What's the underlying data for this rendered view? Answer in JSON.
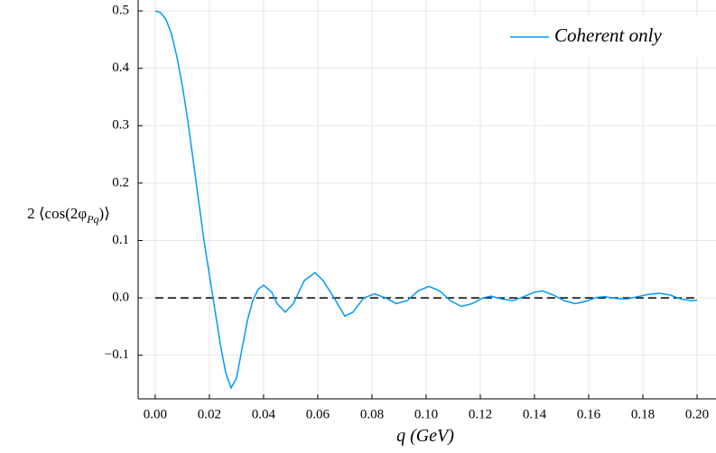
{
  "chart_data": {
    "type": "line",
    "xlabel": {
      "main": "q",
      "unit": "(GeV)"
    },
    "ylabel": {
      "main": "2 ⟨cos(2φ",
      "sub": "Pq",
      "end": ")⟩"
    },
    "xlim": [
      -0.0063,
      0.207
    ],
    "ylim": [
      -0.176,
      0.519
    ],
    "xticks": [
      {
        "value": 0,
        "label": "0.00"
      },
      {
        "value": 0.02,
        "label": "0.02"
      },
      {
        "value": 0.04,
        "label": "0.04"
      },
      {
        "value": 0.06,
        "label": "0.06"
      },
      {
        "value": 0.08,
        "label": "0.08"
      },
      {
        "value": 0.1,
        "label": "0.10"
      },
      {
        "value": 0.12,
        "label": "0.12"
      },
      {
        "value": 0.14,
        "label": "0.14"
      },
      {
        "value": 0.16,
        "label": "0.16"
      },
      {
        "value": 0.18,
        "label": "0.18"
      },
      {
        "value": 0.2,
        "label": "0.20"
      }
    ],
    "yticks": [
      {
        "value": -0.1,
        "label": "−0.1"
      },
      {
        "value": 0,
        "label": "0.0"
      },
      {
        "value": 0.1,
        "label": "0.1"
      },
      {
        "value": 0.2,
        "label": "0.2"
      },
      {
        "value": 0.3,
        "label": "0.3"
      },
      {
        "value": 0.4,
        "label": "0.4"
      },
      {
        "value": 0.5,
        "label": "0.5"
      }
    ],
    "grid": true,
    "legend": "top-right",
    "hline": 0,
    "x": [
      0,
      0.002,
      0.004,
      0.006,
      0.008,
      0.01,
      0.012,
      0.014,
      0.016,
      0.018,
      0.02,
      0.022,
      0.024,
      0.026,
      0.028,
      0.03,
      0.032,
      0.034,
      0.036,
      0.038,
      0.04,
      0.043,
      0.045,
      0.048,
      0.051,
      0.055,
      0.059,
      0.062,
      0.066,
      0.07,
      0.073,
      0.077,
      0.081,
      0.085,
      0.089,
      0.093,
      0.097,
      0.101,
      0.105,
      0.109,
      0.113,
      0.117,
      0.121,
      0.124,
      0.128,
      0.132,
      0.136,
      0.14,
      0.143,
      0.147,
      0.151,
      0.155,
      0.159,
      0.163,
      0.166,
      0.17,
      0.174,
      0.178,
      0.182,
      0.186,
      0.19,
      0.194,
      0.198,
      0.2
    ],
    "series": [
      {
        "name": "Coherent only",
        "color": "#009af9",
        "values": [
          0.5,
          0.497,
          0.485,
          0.46,
          0.42,
          0.37,
          0.31,
          0.24,
          0.17,
          0.1,
          0.04,
          -0.02,
          -0.08,
          -0.13,
          -0.157,
          -0.14,
          -0.09,
          -0.04,
          -0.005,
          0.015,
          0.022,
          0.01,
          -0.01,
          -0.025,
          -0.01,
          0.03,
          0.044,
          0.03,
          0,
          -0.032,
          -0.025,
          0,
          0.007,
          0,
          -0.01,
          -0.005,
          0.012,
          0.02,
          0.012,
          -0.005,
          -0.015,
          -0.01,
          0,
          0.003,
          -0.002,
          -0.005,
          0.002,
          0.01,
          0.012,
          0.005,
          -0.005,
          -0.01,
          -0.006,
          0.001,
          0.002,
          -0.001,
          -0.002,
          0.002,
          0.006,
          0.008,
          0.005,
          -0.002,
          -0.005,
          -0.004
        ]
      }
    ]
  }
}
